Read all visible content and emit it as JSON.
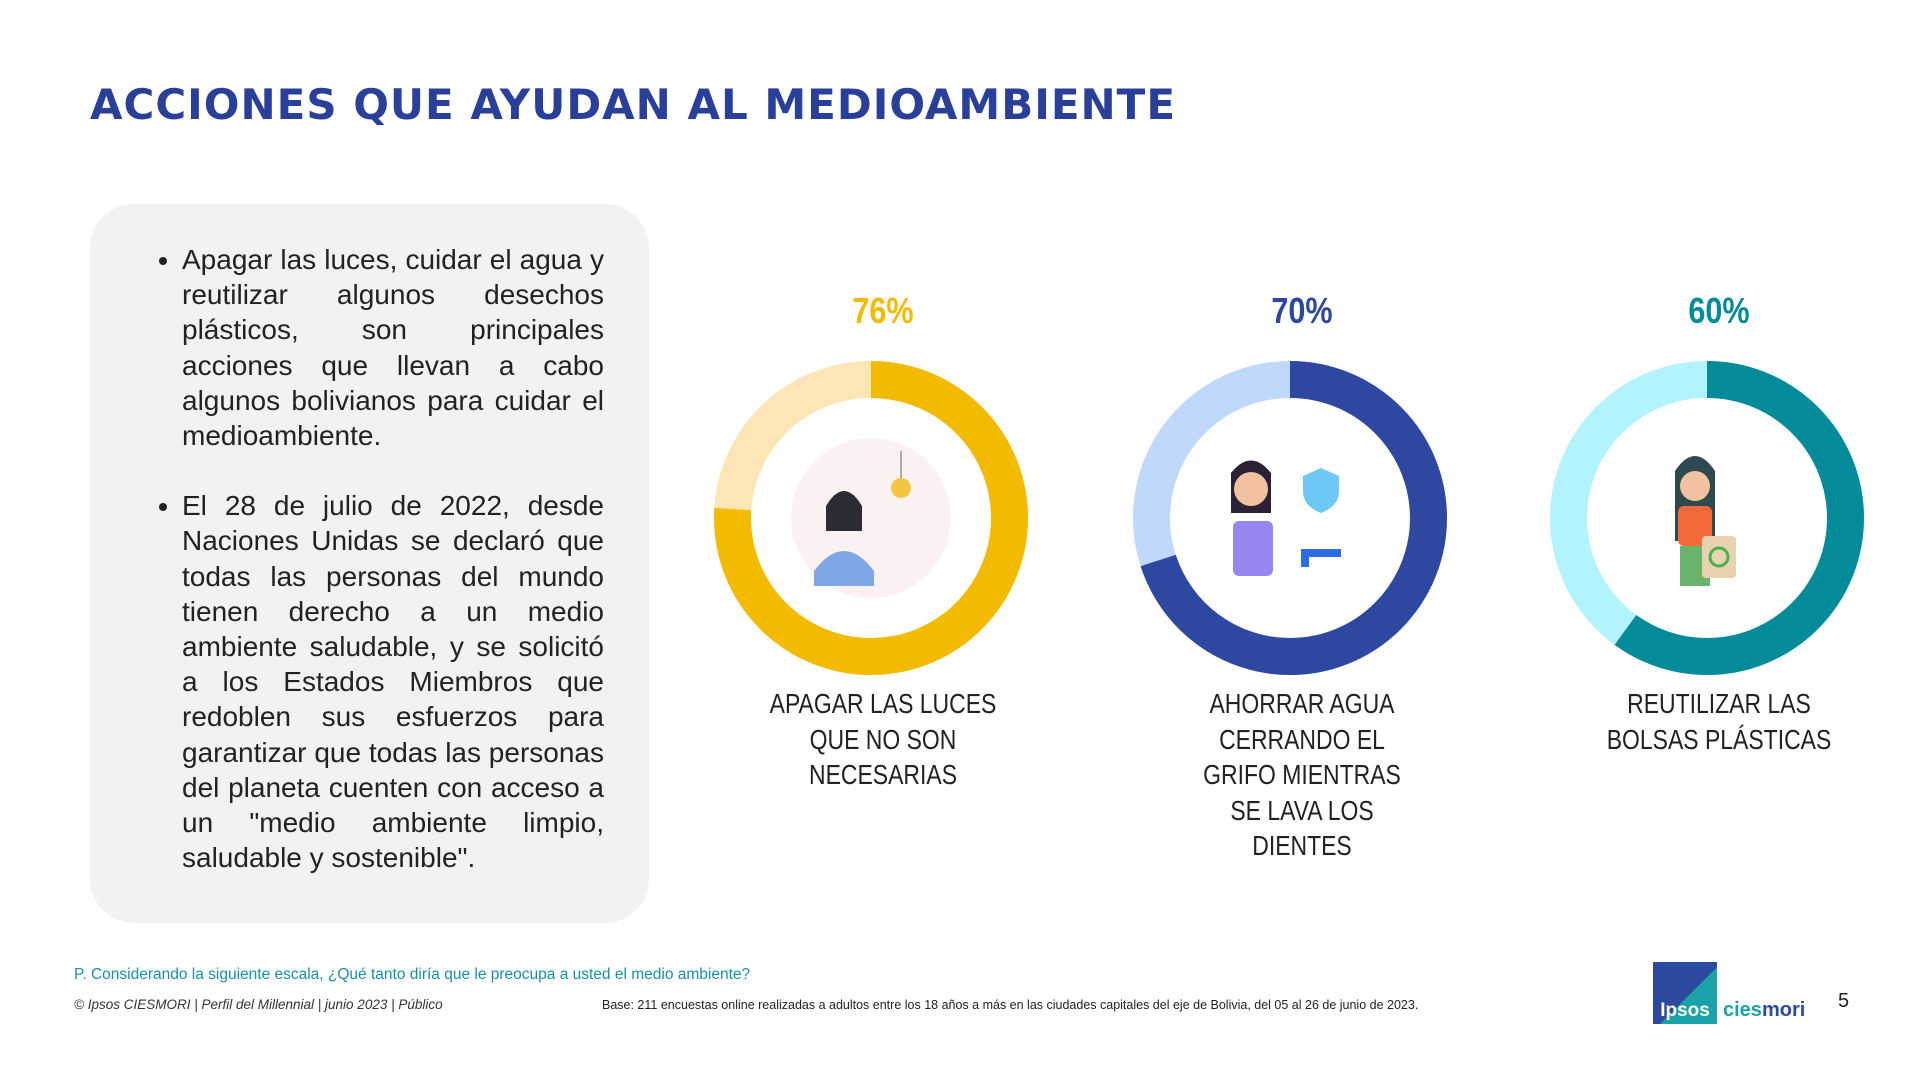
{
  "title": "ACCIONES QUE AYUDAN AL MEDIOAMBIENTE",
  "bullets": [
    "Apagar las luces, cuidar el agua y reutilizar algunos desechos plásticos, son principales acciones que llevan a cabo algunos bolivianos para cuidar el medioambiente.",
    "El 28 de julio de 2022, desde Naciones Unidas se declaró que todas las personas del mundo tienen derecho a un medio ambiente saludable, y se solicitó a los Estados Miembros que redoblen sus esfuerzos para garantizar que todas las personas del planeta cuenten con acceso a un \"medio ambiente limpio, saludable y sostenible\"."
  ],
  "chart_data": {
    "type": "pie",
    "variant": "donut",
    "series": [
      {
        "label_pct": "76%",
        "value": 76,
        "label": "APAGAR LAS LUCES QUE NO SON NECESARIAS",
        "color": "#f2bb00",
        "track_color": "#fce6b8",
        "icon": "lightbulb-woman-icon"
      },
      {
        "label_pct": "70%",
        "value": 70,
        "label": "AHORRAR AGUA CERRANDO EL GRIFO MIENTRAS SE LAVA LOS DIENTES",
        "color": "#2e47a0",
        "track_color": "#c0d8fb",
        "icon": "water-tap-woman-icon"
      },
      {
        "label_pct": "60%",
        "value": 60,
        "label": "REUTILIZAR LAS BOLSAS PLÁSTICAS",
        "color": "#038b9a",
        "track_color": "#b3f3fd",
        "icon": "recycle-bag-woman-icon"
      }
    ]
  },
  "footer": {
    "question": "P. Considerando la siguiente escala, ¿Qué tanto diría que le preocupa a usted el medio ambiente?",
    "copyright": "© Ipsos CIESMORI | Perfil del Millennial | junio 2023 | Público",
    "base": "Base: 211 encuestas online realizadas a adultos entre los 18 años a más en las ciudades capitales del eje de Bolivia, del 05 al 26 de junio de 2023.",
    "logo_ipsos": "Ipsos",
    "logo_cies": "cies",
    "logo_mori": "mori",
    "page_number": "5"
  }
}
